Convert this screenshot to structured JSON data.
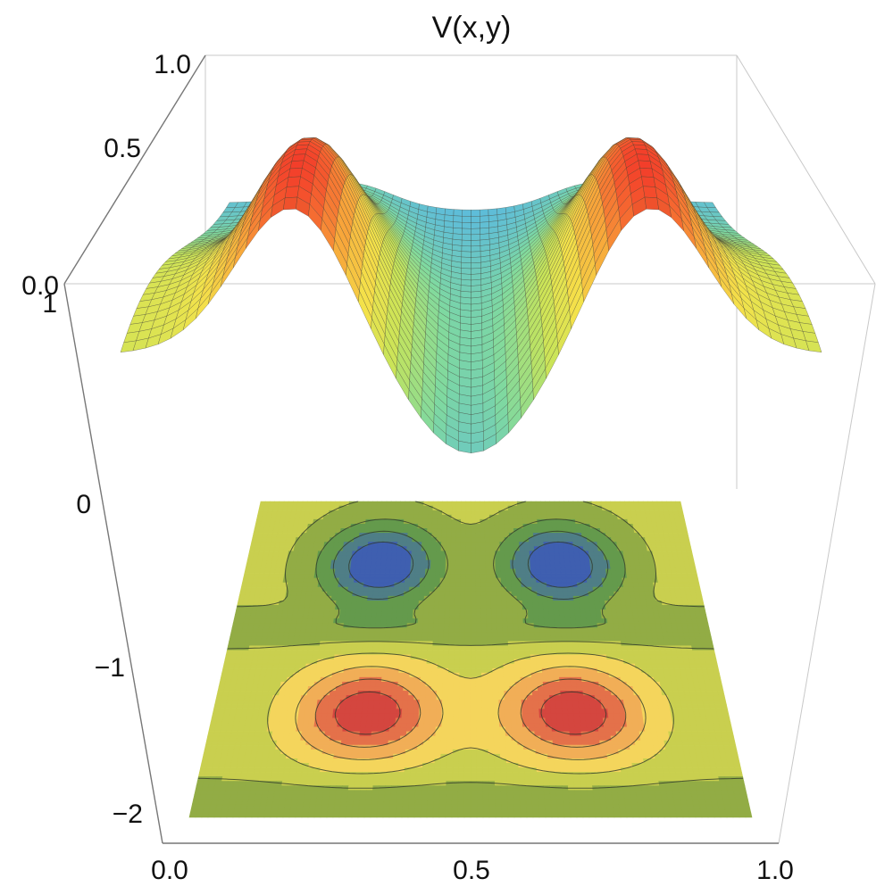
{
  "chart_data": {
    "type": "surface3d-with-contour",
    "title": "V(x,y)",
    "x_ticks": [
      "0.0",
      "0.5",
      "1.0"
    ],
    "left_axis_upper_ticks": [
      "0.0",
      "0.5",
      "1.0"
    ],
    "left_axis_lower_ticks": [
      "1",
      "0",
      "−1",
      "−2"
    ],
    "xlim": [
      0,
      1
    ],
    "surface": {
      "description_free": true,
      "peaks_x": [
        0.25,
        0.75
      ],
      "peak_value": 1.0,
      "center_value": 0.15,
      "edge_value": 0.45,
      "zlim": [
        0,
        1
      ]
    },
    "contour_levels": 8,
    "colorscale": {
      "contour": [
        "#3f5fb0",
        "#4f7e86",
        "#649a4c",
        "#92ac45",
        "#c9cf4f",
        "#f4d55c",
        "#f1ae57",
        "#e4714a",
        "#d4463f"
      ],
      "surface": [
        "#54b4ea",
        "#7fd9a0",
        "#c6e45a",
        "#f4e24a",
        "#f8a63a",
        "#f33d2a"
      ]
    }
  }
}
